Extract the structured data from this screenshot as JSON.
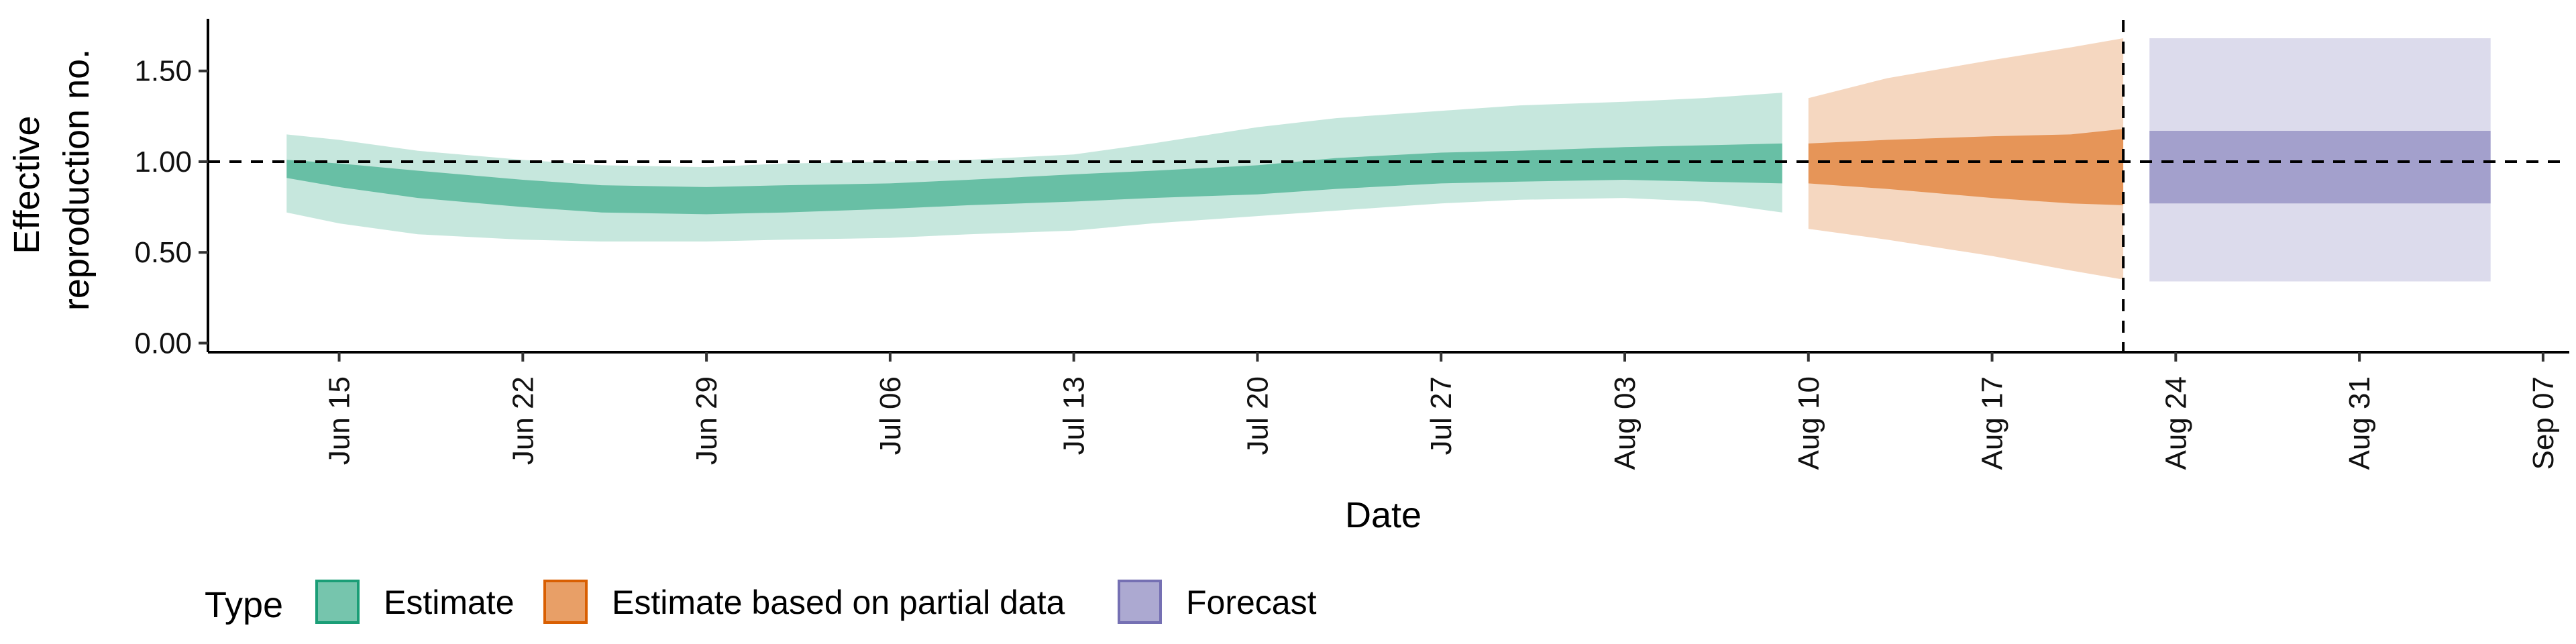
{
  "chart_data": {
    "type": "area",
    "xlabel": "Date",
    "ylabel": [
      "Effective",
      "reproduction no."
    ],
    "ylim": [
      -0.05,
      1.78
    ],
    "x_range": [
      "2020-06-10",
      "2020-09-08"
    ],
    "yticks": [
      {
        "value": 0,
        "label": "0.00"
      },
      {
        "value": 0.5,
        "label": "0.50"
      },
      {
        "value": 1,
        "label": "1.00"
      },
      {
        "value": 1.5,
        "label": "1.50"
      }
    ],
    "xticks": [
      {
        "date": "2020-06-15",
        "label": "Jun 15"
      },
      {
        "date": "2020-06-22",
        "label": "Jun 22"
      },
      {
        "date": "2020-06-29",
        "label": "Jun 29"
      },
      {
        "date": "2020-07-06",
        "label": "Jul 06"
      },
      {
        "date": "2020-07-13",
        "label": "Jul 13"
      },
      {
        "date": "2020-07-20",
        "label": "Jul 20"
      },
      {
        "date": "2020-07-27",
        "label": "Jul 27"
      },
      {
        "date": "2020-08-03",
        "label": "Aug 03"
      },
      {
        "date": "2020-08-10",
        "label": "Aug 10"
      },
      {
        "date": "2020-08-17",
        "label": "Aug 17"
      },
      {
        "date": "2020-08-24",
        "label": "Aug 24"
      },
      {
        "date": "2020-08-31",
        "label": "Aug 31"
      },
      {
        "date": "2020-09-07",
        "label": "Sep 07"
      }
    ],
    "reference_hline": 1.0,
    "reference_vline": "2020-08-22",
    "legend": {
      "title": "Type",
      "position": "bottom-left",
      "entries": [
        {
          "label": "Estimate",
          "color": "#1b9e77"
        },
        {
          "label": "Estimate based on partial data",
          "color": "#d95f02"
        },
        {
          "label": "Forecast",
          "color": "#7570b3"
        }
      ]
    },
    "series": [
      {
        "name": "Estimate",
        "color": "#1b9e77",
        "dates": [
          "2020-06-13",
          "2020-06-15",
          "2020-06-18",
          "2020-06-22",
          "2020-06-25",
          "2020-06-29",
          "2020-07-02",
          "2020-07-06",
          "2020-07-09",
          "2020-07-13",
          "2020-07-16",
          "2020-07-20",
          "2020-07-23",
          "2020-07-27",
          "2020-07-30",
          "2020-08-03",
          "2020-08-06",
          "2020-08-09"
        ],
        "lower90": [
          0.72,
          0.66,
          0.6,
          0.57,
          0.56,
          0.56,
          0.57,
          0.58,
          0.6,
          0.62,
          0.66,
          0.7,
          0.73,
          0.77,
          0.79,
          0.8,
          0.78,
          0.72
        ],
        "lower50": [
          0.91,
          0.86,
          0.8,
          0.75,
          0.72,
          0.71,
          0.72,
          0.74,
          0.76,
          0.78,
          0.8,
          0.82,
          0.85,
          0.88,
          0.89,
          0.9,
          0.89,
          0.88
        ],
        "upper50": [
          1.01,
          0.99,
          0.95,
          0.9,
          0.87,
          0.86,
          0.87,
          0.88,
          0.9,
          0.93,
          0.95,
          0.98,
          1.02,
          1.05,
          1.06,
          1.08,
          1.09,
          1.1
        ],
        "upper90": [
          1.15,
          1.12,
          1.06,
          1.01,
          0.98,
          0.97,
          0.99,
          1.0,
          1.01,
          1.04,
          1.1,
          1.19,
          1.24,
          1.28,
          1.31,
          1.33,
          1.35,
          1.38
        ]
      },
      {
        "name": "Estimate based on partial data",
        "color": "#d95f02",
        "dates": [
          "2020-08-10",
          "2020-08-13",
          "2020-08-17",
          "2020-08-20",
          "2020-08-22"
        ],
        "lower90": [
          0.63,
          0.57,
          0.48,
          0.4,
          0.35
        ],
        "lower50": [
          0.88,
          0.85,
          0.8,
          0.77,
          0.76
        ],
        "upper50": [
          1.1,
          1.12,
          1.14,
          1.15,
          1.18
        ],
        "upper90": [
          1.35,
          1.46,
          1.56,
          1.63,
          1.68
        ]
      },
      {
        "name": "Forecast",
        "color": "#7570b3",
        "dates": [
          "2020-08-23",
          "2020-09-05"
        ],
        "lower90": [
          0.34,
          0.34
        ],
        "lower50": [
          0.77,
          0.77
        ],
        "upper50": [
          1.17,
          1.17
        ],
        "upper90": [
          1.68,
          1.68
        ]
      }
    ]
  }
}
